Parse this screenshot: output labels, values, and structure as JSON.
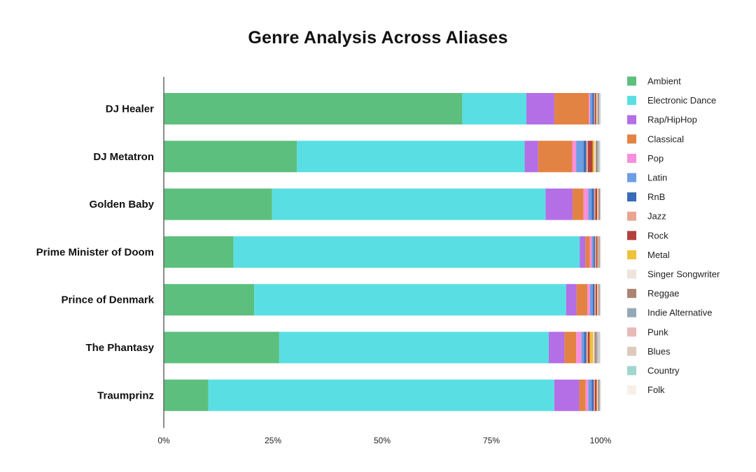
{
  "chart_data": {
    "type": "bar",
    "orientation": "horizontal",
    "stacked": true,
    "normalized": true,
    "title": "Genre Analysis Across Aliases",
    "xlabel": "",
    "ylabel": "",
    "xlim": [
      0,
      100
    ],
    "x_ticks": [
      "0%",
      "25%",
      "50%",
      "75%",
      "100%"
    ],
    "legend_position": "right",
    "grid": false,
    "categories": [
      "DJ Healer",
      "DJ Metatron",
      "Golden Baby",
      "Prime Minister of Doom",
      "Prince of Denmark",
      "The Phantasy",
      "Traumprinz"
    ],
    "series": [
      {
        "name": "Ambient",
        "color": "#5dbf7d",
        "values": [
          68.4,
          30.5,
          24.8,
          16.0,
          20.7,
          26.5,
          10.2
        ]
      },
      {
        "name": "Electronic Dance",
        "color": "#59dfe3",
        "values": [
          14.7,
          52.2,
          62.6,
          79.4,
          71.4,
          61.9,
          79.2
        ]
      },
      {
        "name": "Rap/HipHop",
        "color": "#b46ee6",
        "values": [
          6.4,
          3.1,
          6.2,
          1.3,
          2.4,
          3.6,
          5.7
        ]
      },
      {
        "name": "Classical",
        "color": "#e28343",
        "values": [
          7.9,
          7.8,
          2.5,
          1.0,
          2.5,
          2.7,
          1.5
        ]
      },
      {
        "name": "Pop",
        "color": "#f78fdb",
        "values": [
          0.3,
          0.9,
          1.1,
          0.5,
          0.6,
          1.2,
          0.6
        ]
      },
      {
        "name": "Latin",
        "color": "#6d9ee4",
        "values": [
          0.5,
          1.7,
          0.8,
          0.4,
          0.6,
          0.6,
          0.8
        ]
      },
      {
        "name": "RnB",
        "color": "#3a6bb8",
        "values": [
          0.4,
          0.6,
          0.5,
          0.3,
          0.4,
          0.5,
          0.4
        ]
      },
      {
        "name": "Jazz",
        "color": "#e8a591",
        "values": [
          0.2,
          0.4,
          0.3,
          0.3,
          0.3,
          0.4,
          0.3
        ]
      },
      {
        "name": "Rock",
        "color": "#b2413b",
        "values": [
          0.3,
          1.1,
          0.4,
          0.3,
          0.3,
          0.4,
          0.4
        ]
      },
      {
        "name": "Metal",
        "color": "#f0c23b",
        "values": [
          0.1,
          0.4,
          0.1,
          0.1,
          0.1,
          0.8,
          0.1
        ]
      },
      {
        "name": "Singer Songwriter",
        "color": "#ede5dc",
        "values": [
          0.2,
          0.3,
          0.2,
          0.1,
          0.2,
          0.3,
          0.2
        ]
      },
      {
        "name": "Reggae",
        "color": "#ad8474",
        "values": [
          0.2,
          0.3,
          0.3,
          0.2,
          0.2,
          0.4,
          0.2
        ]
      },
      {
        "name": "Indie Alternative",
        "color": "#96a8b8",
        "values": [
          0.2,
          0.3,
          0.1,
          0.1,
          0.1,
          0.3,
          0.2
        ]
      },
      {
        "name": "Punk",
        "color": "#e7b9b7",
        "values": [
          0.1,
          0.1,
          0.1,
          0.1,
          0.1,
          0.2,
          0.1
        ]
      },
      {
        "name": "Blues",
        "color": "#dccbbd",
        "values": [
          0.1,
          0.1,
          0.0,
          0.1,
          0.1,
          0.2,
          0.1
        ]
      },
      {
        "name": "Country",
        "color": "#9fd6d0",
        "values": [
          0.1,
          0.2,
          0.0,
          0.0,
          0.0,
          0.2,
          0.0
        ]
      },
      {
        "name": "Folk",
        "color": "#f7efe9",
        "values": [
          0.0,
          0.1,
          0.0,
          0.0,
          0.0,
          0.1,
          0.0
        ]
      }
    ]
  }
}
